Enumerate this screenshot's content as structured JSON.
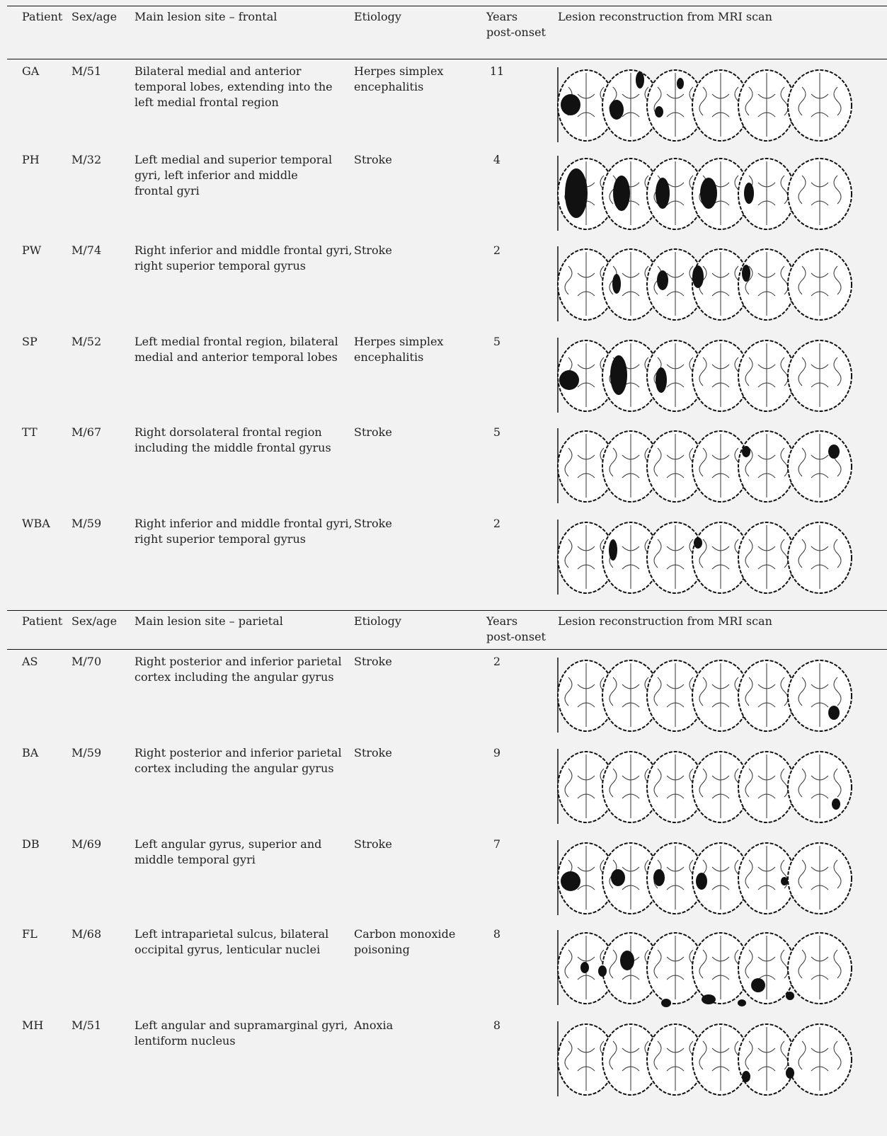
{
  "sections": [
    {
      "header": {
        "patient": "Patient",
        "sex_age": "Sex/age",
        "lesion_site": "Main lesion site – frontal",
        "etiology": "Etiology",
        "years": [
          "Years",
          "post-onset"
        ],
        "reconstruction": "Lesion reconstruction from MRI scan"
      },
      "rows": [
        {
          "patient": "GA",
          "sex_age": "M/51",
          "lesion_site": [
            "Bilateral medial and anterior",
            "temporal lobes, extending into the",
            "left medial frontal region"
          ],
          "etiology": [
            "Herpes simplex",
            "encephalitis"
          ],
          "years": 11
        },
        {
          "patient": "PH",
          "sex_age": "M/32",
          "lesion_site": [
            "Left medial and superior temporal",
            "gyri, left inferior and middle",
            "frontal gyri"
          ],
          "etiology": [
            "Stroke"
          ],
          "years": 4
        },
        {
          "patient": "PW",
          "sex_age": "M/74",
          "lesion_site": [
            "Right inferior and middle frontal gyri,",
            "right superior temporal gyrus"
          ],
          "etiology": [
            "Stroke"
          ],
          "years": 2
        },
        {
          "patient": "SP",
          "sex_age": "M/52",
          "lesion_site": [
            "Left medial frontal region, bilateral",
            "medial and anterior temporal lobes"
          ],
          "etiology": [
            "Herpes simplex",
            "encephalitis"
          ],
          "years": 5
        },
        {
          "patient": "TT",
          "sex_age": "M/67",
          "lesion_site": [
            "Right dorsolateral frontal region",
            "including the middle frontal gyrus"
          ],
          "etiology": [
            "Stroke"
          ],
          "years": 5
        },
        {
          "patient": "WBA",
          "sex_age": "M/59",
          "lesion_site": [
            "Right inferior and middle frontal gyri,",
            "right superior temporal gyrus"
          ],
          "etiology": [
            "Stroke"
          ],
          "years": 2
        }
      ]
    },
    {
      "header": {
        "patient": "Patient",
        "sex_age": "Sex/age",
        "lesion_site": "Main lesion site – parietal",
        "etiology": "Etiology",
        "years": [
          "Years",
          "post-onset"
        ],
        "reconstruction": "Lesion reconstruction from MRI scan"
      },
      "rows": [
        {
          "patient": "AS",
          "sex_age": "M/70",
          "lesion_site": [
            "Right posterior and inferior parietal",
            "cortex including the angular gyrus"
          ],
          "etiology": [
            "Stroke"
          ],
          "years": 2
        },
        {
          "patient": "BA",
          "sex_age": "M/59",
          "lesion_site": [
            "Right posterior and inferior parietal",
            "cortex including the angular gyrus"
          ],
          "etiology": [
            "Stroke"
          ],
          "years": 9
        },
        {
          "patient": "DB",
          "sex_age": "M/69",
          "lesion_site": [
            "Left angular gyrus, superior and",
            "middle temporal gyri"
          ],
          "etiology": [
            "Stroke"
          ],
          "years": 7
        },
        {
          "patient": "FL",
          "sex_age": "M/68",
          "lesion_site": [
            "Left intraparietal sulcus, bilateral",
            "occipital gyrus, lenticular nuclei"
          ],
          "etiology": [
            "Carbon monoxide",
            "poisoning"
          ],
          "years": 8
        },
        {
          "patient": "MH",
          "sex_age": "M/51",
          "lesion_site": [
            "Left angular and supramarginal gyri,",
            "lentiform nucleus"
          ],
          "etiology": [
            "Anoxia"
          ],
          "years": 8
        }
      ]
    }
  ]
}
